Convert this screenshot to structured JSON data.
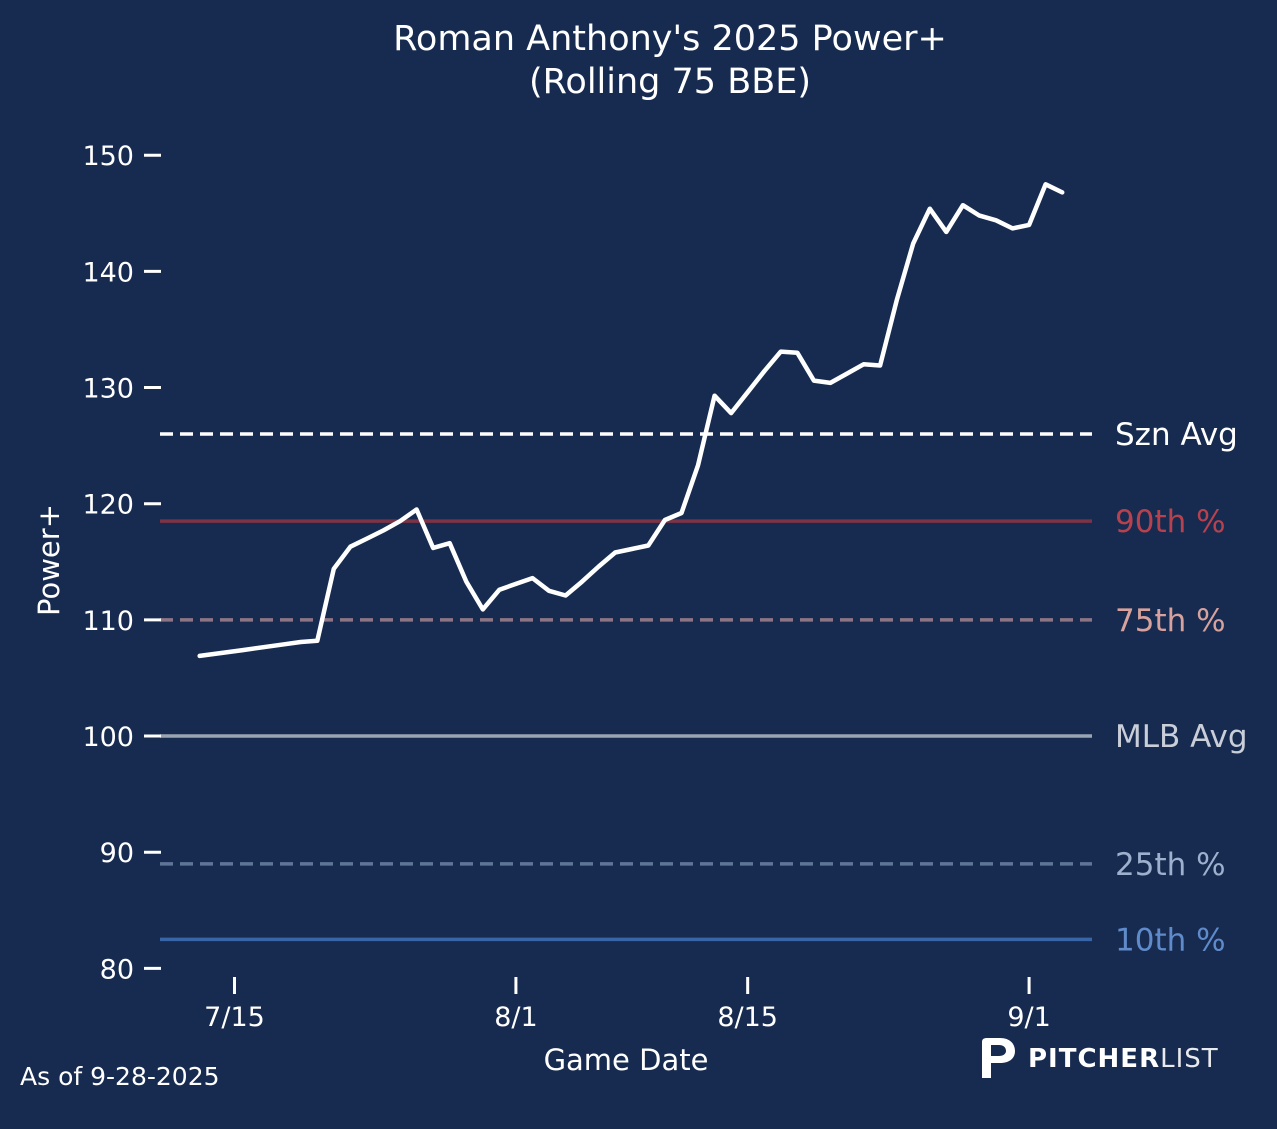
{
  "chart_data": {
    "type": "line",
    "title": "Roman Anthony's 2025 Power+",
    "subtitle": "(Rolling 75 BBE)",
    "xlabel": "Game Date",
    "ylabel": "Power+",
    "ylim": [
      79,
      152
    ],
    "yticks": [
      80,
      90,
      100,
      110,
      120,
      130,
      140,
      150
    ],
    "xticks": [
      {
        "label": "7/15",
        "day": 15
      },
      {
        "label": "8/1",
        "day": 32
      },
      {
        "label": "8/15",
        "day": 46
      },
      {
        "label": "9/1",
        "day": 63
      }
    ],
    "xlim": [
      10.5,
      66.8
    ],
    "series": [
      {
        "color": "#ffffff",
        "points": [
          [
            12.9,
            106.9
          ],
          [
            15.5,
            107.4
          ],
          [
            18.0,
            107.9
          ],
          [
            19.0,
            108.1
          ],
          [
            20.0,
            108.2
          ],
          [
            21.0,
            114.4
          ],
          [
            22.0,
            116.3
          ],
          [
            23.0,
            117.0
          ],
          [
            24.0,
            117.7
          ],
          [
            25.0,
            118.5
          ],
          [
            26.0,
            119.5
          ],
          [
            27.0,
            116.2
          ],
          [
            28.0,
            116.6
          ],
          [
            29.0,
            113.3
          ],
          [
            30.0,
            110.9
          ],
          [
            31.0,
            112.6
          ],
          [
            32.0,
            113.1
          ],
          [
            33.0,
            113.6
          ],
          [
            34.0,
            112.5
          ],
          [
            35.0,
            112.1
          ],
          [
            36.0,
            113.3
          ],
          [
            37.0,
            114.6
          ],
          [
            38.0,
            115.8
          ],
          [
            39.0,
            116.1
          ],
          [
            40.0,
            116.4
          ],
          [
            41.0,
            118.6
          ],
          [
            42.0,
            119.2
          ],
          [
            43.0,
            123.3
          ],
          [
            44.0,
            129.3
          ],
          [
            45.0,
            127.8
          ],
          [
            46.0,
            129.6
          ],
          [
            47.0,
            131.4
          ],
          [
            48.0,
            133.1
          ],
          [
            49.0,
            133.0
          ],
          [
            50.0,
            130.6
          ],
          [
            51.0,
            130.4
          ],
          [
            52.0,
            131.2
          ],
          [
            53.0,
            132.0
          ],
          [
            54.0,
            131.9
          ],
          [
            55.0,
            137.5
          ],
          [
            56.0,
            142.4
          ],
          [
            57.0,
            145.4
          ],
          [
            58.0,
            143.4
          ],
          [
            59.0,
            145.7
          ],
          [
            60.0,
            144.8
          ],
          [
            61.0,
            144.4
          ],
          [
            62.0,
            143.7
          ],
          [
            63.0,
            144.0
          ],
          [
            64.0,
            147.5
          ],
          [
            65.0,
            146.8
          ]
        ]
      }
    ],
    "reference_lines": [
      {
        "label": "Szn Avg",
        "value": 126.0,
        "color": "#ffffff",
        "label_color": "#ffffff",
        "style": "dashed"
      },
      {
        "label": "90th %",
        "value": 118.5,
        "color": "#7a3446",
        "label_color": "#b8414e",
        "style": "solid"
      },
      {
        "label": "75th %",
        "value": 110.0,
        "color": "#8e7585",
        "label_color": "#d7a29d",
        "style": "dashed"
      },
      {
        "label": "MLB Avg",
        "value": 100.0,
        "color": "#9aa5b3",
        "label_color": "#c9ced8",
        "style": "solid"
      },
      {
        "label": "25th %",
        "value": 89.0,
        "color": "#5f7597",
        "label_color": "#9db0ce",
        "style": "dashed"
      },
      {
        "label": "10th %",
        "value": 82.5,
        "color": "#3a64a8",
        "label_color": "#5f8bcb",
        "style": "solid"
      }
    ],
    "grid": false,
    "background": "#172b50"
  },
  "footer": {
    "as_of": "As of 9-28-2025",
    "brand_bold": "PITCHER",
    "brand_light": "LIST"
  }
}
